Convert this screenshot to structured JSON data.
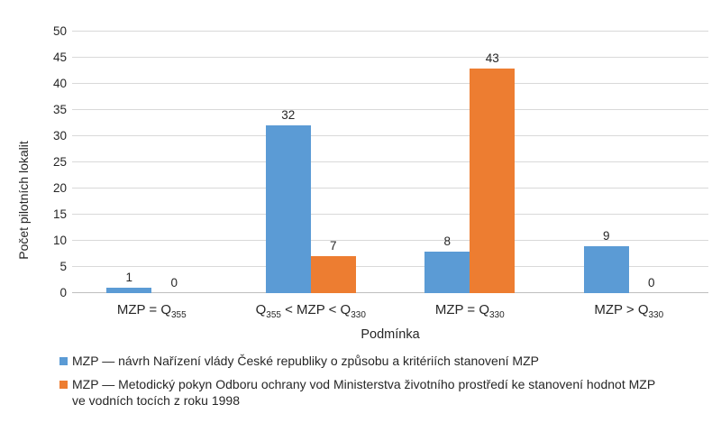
{
  "chart_data": {
    "type": "bar",
    "title": "",
    "xlabel": "Podmínka",
    "ylabel": "Počet pilotních lokalit",
    "ylim": [
      0,
      50
    ],
    "ytick_step": 5,
    "grid": "horizontal",
    "legend_position": "bottom-left",
    "bar_value_labels": true,
    "categories": [
      "MZP = Q355",
      "Q355 < MZP < Q330",
      "MZP = Q330",
      "MZP > Q330"
    ],
    "categories_rich": [
      [
        {
          "t": "MZP = Q"
        },
        {
          "t": "355",
          "sub": true
        }
      ],
      [
        {
          "t": "Q"
        },
        {
          "t": "355",
          "sub": true
        },
        {
          "t": " < MZP < Q"
        },
        {
          "t": "330",
          "sub": true
        }
      ],
      [
        {
          "t": "MZP = Q"
        },
        {
          "t": "330",
          "sub": true
        }
      ],
      [
        {
          "t": "MZP > Q"
        },
        {
          "t": "330",
          "sub": true
        }
      ]
    ],
    "series": [
      {
        "name": "MZP — návrh Nařízení vlády České republiky o způsobu a kritériích stanovení MZP",
        "color": "#5B9BD5",
        "values": [
          1,
          32,
          8,
          9
        ]
      },
      {
        "name": "MZP — Metodický pokyn Odboru ochrany vod Ministerstva životního prostředí ke stanovení hodnot MZP\nve vodních tocích z roku 1998",
        "color": "#ED7D31",
        "values": [
          0,
          7,
          43,
          0
        ]
      }
    ]
  },
  "colors": {
    "gridline": "#D9D9D9",
    "axis_line": "#BFBFBF",
    "text": "#262626",
    "series_blue": "#5B9BD5",
    "series_orange": "#ED7D31"
  }
}
